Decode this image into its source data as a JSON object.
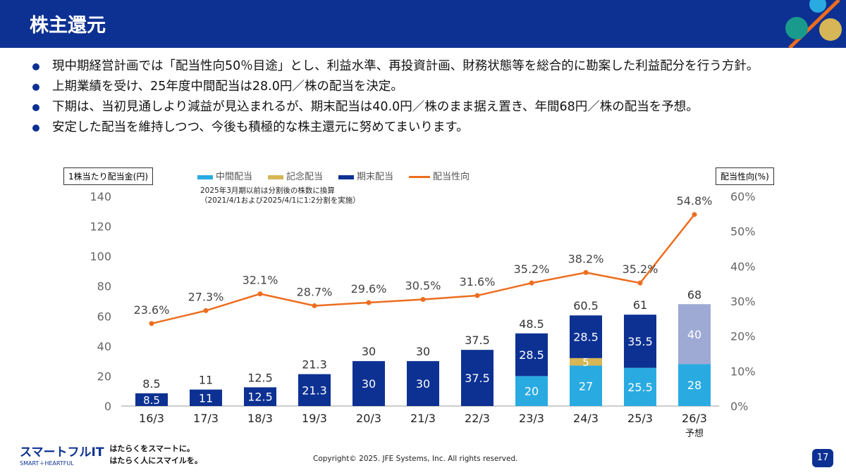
{
  "header": {
    "title": "株主還元"
  },
  "bullets": [
    "現中期経営計画では「配当性向50％目途」とし、利益水準、再投資計画、財務状態等を総合的に勘案した利益配分を行う方針。",
    "上期業績を受け、25年度中間配当は28.0円／株の配当を決定。",
    "下期は、当初見通しより減益が見込まれるが、期末配当は40.0円／株のまま据え置き、年間68円／株の配当を予想。",
    "安定した配当を維持しつつ、今後も積極的な株主還元に努めてまいります。"
  ],
  "chart_data": {
    "type": "bar",
    "stacked": true,
    "ylabel": "1株当たり配当金(円)",
    "y2label": "配当性向(%)",
    "ylim": [
      0,
      140
    ],
    "y2lim": [
      0,
      60
    ],
    "yticks": [
      0,
      20,
      40,
      60,
      80,
      100,
      120,
      140
    ],
    "y2ticks": [
      "0%",
      "10%",
      "20%",
      "30%",
      "40%",
      "50%",
      "60%"
    ],
    "note": [
      "2025年3月期以前は分割後の株数に換算",
      "（2021/4/1および2025/4/1に1:2分割を実施）"
    ],
    "categories": [
      "16/3",
      "17/3",
      "18/3",
      "19/3",
      "20/3",
      "21/3",
      "22/3",
      "23/3",
      "24/3",
      "25/3",
      "26/3"
    ],
    "forecast_label": "予想",
    "series": [
      {
        "name": "中間配当",
        "color": "#29abe2",
        "values": [
          0,
          0,
          0,
          0,
          0,
          0,
          0,
          20,
          27,
          25.5,
          28
        ]
      },
      {
        "name": "記念配当",
        "color": "#d6b656",
        "values": [
          0,
          0,
          0,
          0,
          0,
          0,
          0,
          0,
          5,
          0,
          0
        ]
      },
      {
        "name": "期末配当",
        "color": "#0d3192",
        "forecast_color": "#9ea9d4",
        "values": [
          8.5,
          11,
          12.5,
          21.3,
          30,
          30,
          37.5,
          28.5,
          28.5,
          35.5,
          40
        ]
      },
      {
        "name": "配当性向",
        "type": "line",
        "axis": "right",
        "color": "#ed6d1f",
        "values": [
          23.6,
          27.3,
          32.1,
          28.7,
          29.6,
          30.5,
          31.6,
          35.2,
          38.2,
          35.2,
          54.8
        ]
      }
    ],
    "totals": [
      8.5,
      11,
      12.5,
      21.3,
      30,
      30,
      37.5,
      48.5,
      60.5,
      61,
      68
    ]
  },
  "footer": {
    "logo": "スマートフルIT",
    "logo_sub": "SMART＋HEARTFUL",
    "tagline1": "はたらくをスマートに。",
    "tagline2": "はたらく人にスマイルを。",
    "copyright": "Copyright© 2025. JFE Systems, Inc. All rights reserved.",
    "page": "17"
  }
}
